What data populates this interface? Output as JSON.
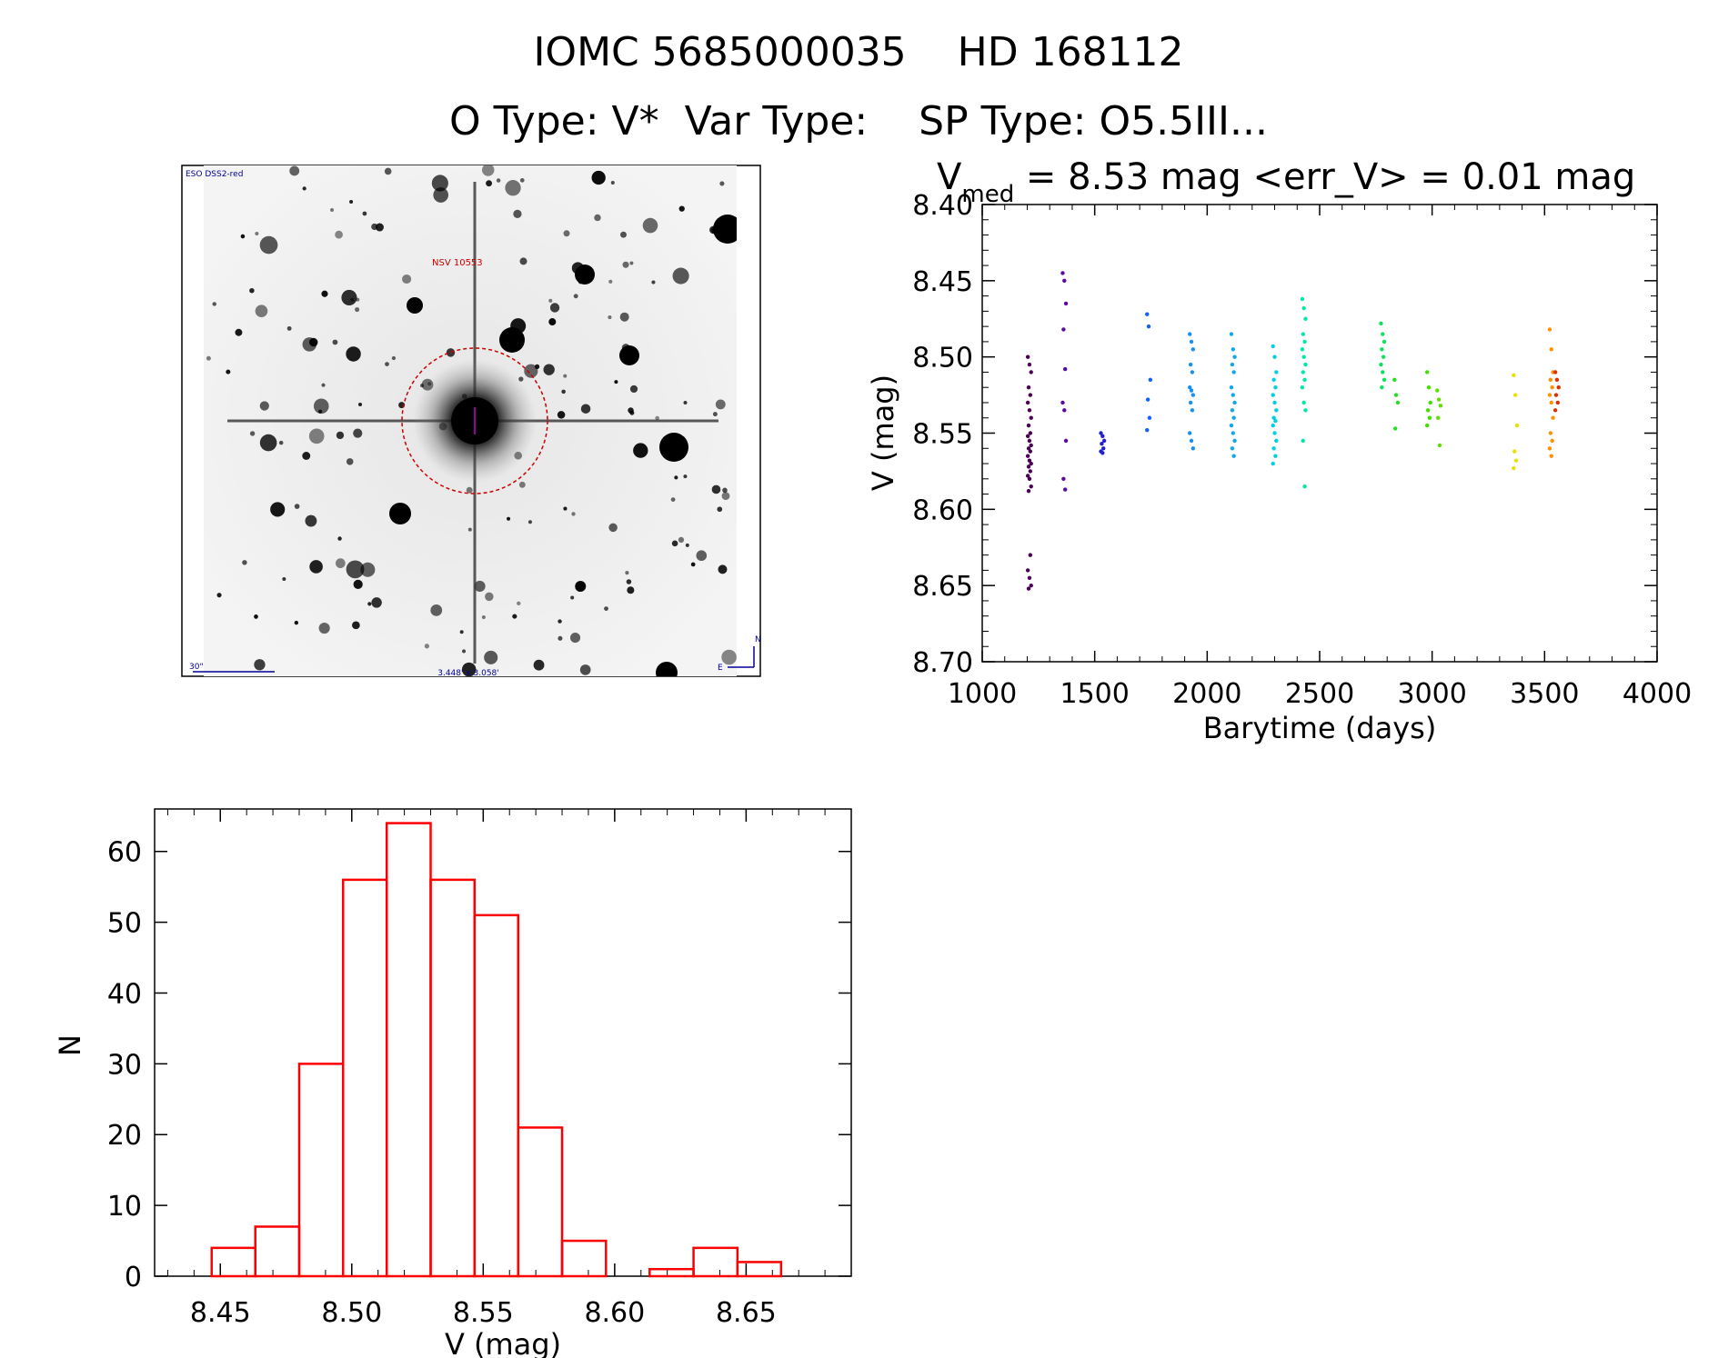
{
  "header": {
    "title": "IOMC 5685000035    HD 168112",
    "subtitle": "O Type: V*  Var Type:    SP Type: O5.5III..."
  },
  "image_panel": {
    "survey_label": "ESO DSS2-red",
    "target_label": "NSV 10553",
    "scale_label": "30\"",
    "fov_label": "3.448' x 3.058'",
    "north_label": "N",
    "east_label": "E"
  },
  "colors": {
    "axis": "#000000",
    "histogram": "#ff0000",
    "target_circle": "#cc0000",
    "overlay_text": "#000099"
  },
  "chart_data": [
    {
      "type": "scatter",
      "title": "V",
      "title_sub": "med",
      "title_rest": " = 8.53 mag <err_V> = 0.01 mag",
      "xlabel": "Barytime (days)",
      "ylabel": "V (mag)",
      "xlim": [
        1000,
        4000
      ],
      "ylim": [
        8.7,
        8.4
      ],
      "y_inverted": true,
      "xticks": [
        "1000",
        "1500",
        "2000",
        "2500",
        "3000",
        "3500",
        "4000"
      ],
      "yticks": [
        "8.40",
        "8.45",
        "8.50",
        "8.55",
        "8.60",
        "8.65",
        "8.70"
      ],
      "color_by_time": true,
      "groups": [
        {
          "x": 1210,
          "color": "#4b0055",
          "y": [
            8.5,
            8.505,
            8.51,
            8.52,
            8.525,
            8.53,
            8.535,
            8.54,
            8.545,
            8.55,
            8.552,
            8.555,
            8.558,
            8.56,
            8.562,
            8.565,
            8.568,
            8.57,
            8.572,
            8.575,
            8.578,
            8.58,
            8.585,
            8.588,
            8.63,
            8.64,
            8.645,
            8.65,
            8.652
          ]
        },
        {
          "x": 1365,
          "color": "#5a0aa0",
          "y": [
            8.445,
            8.45,
            8.465,
            8.482,
            8.508,
            8.53,
            8.535,
            8.555,
            8.58,
            8.587
          ]
        },
        {
          "x": 1535,
          "color": "#2020d0",
          "y": [
            8.55,
            8.552,
            8.555,
            8.557,
            8.56,
            8.562,
            8.563
          ]
        },
        {
          "x": 1740,
          "color": "#1060ff",
          "y": [
            8.472,
            8.48,
            8.515,
            8.528,
            8.54,
            8.548
          ]
        },
        {
          "x": 1930,
          "color": "#1890f0",
          "y": [
            8.485,
            8.49,
            8.495,
            8.505,
            8.51,
            8.52,
            8.522,
            8.525,
            8.53,
            8.535,
            8.55,
            8.555,
            8.56
          ]
        },
        {
          "x": 2115,
          "color": "#10a8e8",
          "y": [
            8.485,
            8.495,
            8.5,
            8.505,
            8.51,
            8.52,
            8.525,
            8.53,
            8.535,
            8.54,
            8.545,
            8.55,
            8.555,
            8.56,
            8.565
          ]
        },
        {
          "x": 2300,
          "color": "#00d0e0",
          "y": [
            8.493,
            8.5,
            8.51,
            8.515,
            8.52,
            8.525,
            8.53,
            8.535,
            8.54,
            8.542,
            8.545,
            8.55,
            8.555,
            8.56,
            8.565,
            8.57
          ]
        },
        {
          "x": 2430,
          "color": "#00e8a8",
          "y": [
            8.462,
            8.468,
            8.475,
            8.485,
            8.49,
            8.495,
            8.5,
            8.505,
            8.51,
            8.515,
            8.52,
            8.53,
            8.535,
            8.555,
            8.585
          ]
        },
        {
          "x": 2780,
          "color": "#10e060",
          "y": [
            8.478,
            8.485,
            8.49,
            8.495,
            8.5,
            8.505,
            8.51,
            8.515,
            8.52
          ]
        },
        {
          "x": 2840,
          "color": "#20e020",
          "y": [
            8.515,
            8.525,
            8.53,
            8.547
          ]
        },
        {
          "x": 2985,
          "color": "#40e000",
          "y": [
            8.51,
            8.52,
            8.53,
            8.535,
            8.54,
            8.545
          ]
        },
        {
          "x": 3030,
          "color": "#60e000",
          "y": [
            8.522,
            8.528,
            8.532,
            8.54,
            8.558
          ]
        },
        {
          "x": 3370,
          "color": "#e8e000",
          "y": [
            8.512,
            8.525,
            8.545,
            8.562,
            8.568,
            8.573
          ]
        },
        {
          "x": 3530,
          "color": "#ff9000",
          "y": [
            8.482,
            8.495,
            8.51,
            8.515,
            8.52,
            8.525,
            8.53,
            8.54,
            8.55,
            8.555,
            8.56,
            8.565
          ]
        },
        {
          "x": 3555,
          "color": "#e03000",
          "y": [
            8.51,
            8.515,
            8.52,
            8.525,
            8.53,
            8.535
          ]
        }
      ]
    },
    {
      "type": "bar",
      "subtype": "histogram",
      "xlabel": "V (mag)",
      "ylabel": "N",
      "xlim": [
        8.425,
        8.69
      ],
      "ylim": [
        0,
        66
      ],
      "xticks": [
        "8.45",
        "8.50",
        "8.55",
        "8.60",
        "8.65"
      ],
      "yticks": [
        "0",
        "10",
        "20",
        "30",
        "40",
        "50",
        "60"
      ],
      "bin_edges": [
        8.4467,
        8.4633,
        8.48,
        8.4967,
        8.5133,
        8.53,
        8.5467,
        8.5633,
        8.58,
        8.5967,
        8.6133,
        8.63,
        8.6467,
        8.6633
      ],
      "values": [
        4,
        7,
        30,
        56,
        64,
        56,
        51,
        21,
        5,
        0,
        1,
        4,
        2
      ]
    }
  ]
}
